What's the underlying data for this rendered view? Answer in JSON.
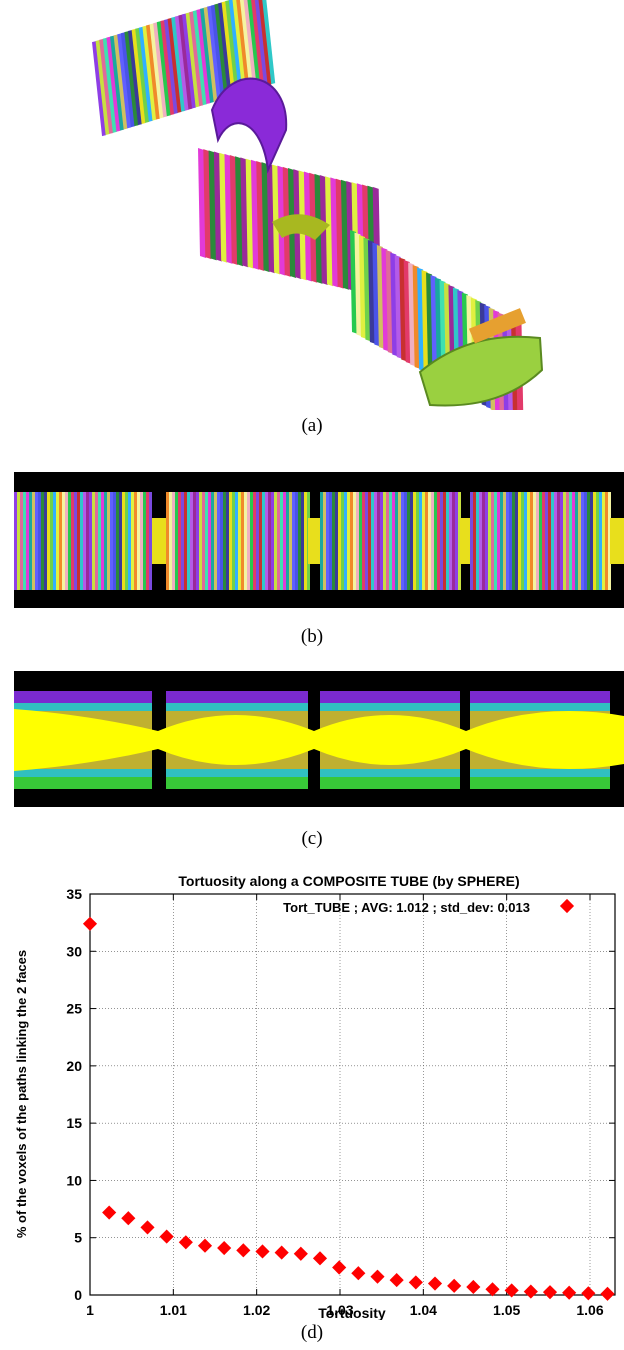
{
  "captions": {
    "a": "(a)",
    "b": "(b)",
    "c": "(c)",
    "d": "(d)"
  },
  "palette": [
    "#8e3ee6",
    "#27c94e",
    "#e8df1c",
    "#e23ad8",
    "#2fc8c8",
    "#f08a2a",
    "#4a53e8",
    "#c8e040",
    "#e23a6a",
    "#6fd14a",
    "#1aa8a0",
    "#b45be8",
    "#f4f4a0",
    "#2a8a3a",
    "#e06a9a",
    "#7a4ae0",
    "#30b0ff",
    "#d0c060",
    "#9a2a9a",
    "#f0b0c0",
    "#3a3a9a",
    "#40e0b0",
    "#c83030",
    "#e0f040",
    "#6060ff"
  ],
  "slice_c_colors": {
    "core": "#ffff00",
    "band1": "#c0b030",
    "band2": "#30c0c0",
    "band3": "#7a2ad0",
    "band4": "#38c838"
  },
  "chart_data": {
    "type": "scatter",
    "title": "Tortuosity along a COMPOSITE TUBE (by SPHERE)",
    "xlabel": "Tortuosity",
    "ylabel": "% of the voxels of the paths linking the 2 faces",
    "xlim": [
      1,
      1.063
    ],
    "ylim": [
      0,
      35
    ],
    "xticks": [
      1,
      1.01,
      1.02,
      1.03,
      1.04,
      1.05,
      1.06
    ],
    "xtick_labels": [
      "1",
      "1.01",
      "1.02",
      "1.03",
      "1.04",
      "1.05",
      "1.06"
    ],
    "yticks": [
      0,
      5,
      10,
      15,
      20,
      25,
      30,
      35
    ],
    "ytick_labels": [
      "0",
      "5",
      "10",
      "15",
      "20",
      "25",
      "30",
      "35"
    ],
    "grid": true,
    "legend_position": "top-right",
    "marker_color": "#ff0000",
    "series": [
      {
        "name": "Tort_TUBE ; AVG: 1.012 ; std_dev: 0.013",
        "x": [
          1.0,
          1.0023,
          1.0046,
          1.0069,
          1.0092,
          1.0115,
          1.0138,
          1.0161,
          1.0184,
          1.0207,
          1.023,
          1.0253,
          1.0276,
          1.0299,
          1.0322,
          1.0345,
          1.0368,
          1.0391,
          1.0414,
          1.0437,
          1.046,
          1.0483,
          1.0506,
          1.0529,
          1.0552,
          1.0575,
          1.0598,
          1.0621
        ],
        "y": [
          32.4,
          7.2,
          6.7,
          5.9,
          5.1,
          4.6,
          4.3,
          4.1,
          3.9,
          3.8,
          3.7,
          3.6,
          3.2,
          2.4,
          1.9,
          1.6,
          1.3,
          1.1,
          1.0,
          0.8,
          0.7,
          0.5,
          0.4,
          0.3,
          0.25,
          0.2,
          0.15,
          0.1
        ]
      }
    ]
  }
}
